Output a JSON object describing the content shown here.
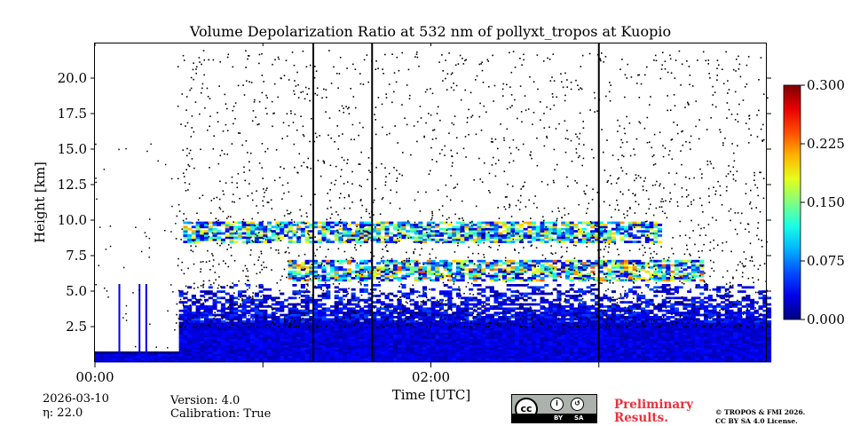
{
  "chart_data": {
    "type": "heatmap",
    "title": "Volume Depolarization Ratio at 532 nm of pollyxt_tropos at Kuopio",
    "xlabel": "Time [UTC]",
    "ylabel": "Height [km]",
    "x_range_hours": [
      0,
      4.0
    ],
    "x_ticks": [
      0,
      1,
      2,
      3
    ],
    "x_tick_labels": [
      "00:00",
      "",
      "02:00",
      ""
    ],
    "ylim": [
      0,
      22.5
    ],
    "y_ticks": [
      2.5,
      5.0,
      7.5,
      10.0,
      12.5,
      15.0,
      17.5,
      20.0
    ],
    "y_tick_labels": [
      "2.5",
      "5.0",
      "7.5",
      "10.0",
      "12.5",
      "15.0",
      "17.5",
      "20.0"
    ],
    "colorbar": {
      "range": [
        0.0,
        0.3
      ],
      "ticks": [
        0.0,
        0.075,
        0.15,
        0.225,
        0.3
      ],
      "tick_labels": [
        "0.000",
        "0.075",
        "0.150",
        "0.225",
        "0.300"
      ],
      "colormap": "jet"
    },
    "features": {
      "surface_layer_top_km": 0.7,
      "full_signal_start_h": 0.48,
      "boundary_layer_top_km": 2.8,
      "cloud_layers": [
        {
          "name": "upper cloud",
          "t_start_h": 0.52,
          "t_end_h": 3.35,
          "base_km": 8.4,
          "top_km": 9.8,
          "max_value": 0.2
        },
        {
          "name": "lower cloud",
          "t_start_h": 1.15,
          "t_end_h": 3.6,
          "base_km": 5.7,
          "top_km": 7.1,
          "max_value": 0.22
        }
      ],
      "vertical_lines_h": [
        1.3,
        1.65,
        3.0
      ],
      "noise_description": "sparse black dots above cloud level"
    }
  },
  "footer": {
    "date": "2026-03-10",
    "eta": "η: 22.0",
    "version": "Version: 4.0",
    "calibration": "Calibration: True",
    "preliminary": "Preliminary",
    "results": "Results.",
    "copyright": "© TROPOS & FMI 2026.",
    "license": "CC BY SA 4.0 License.",
    "cc_logo_text": "cc",
    "cc_by": "BY",
    "cc_sa": "SA"
  }
}
